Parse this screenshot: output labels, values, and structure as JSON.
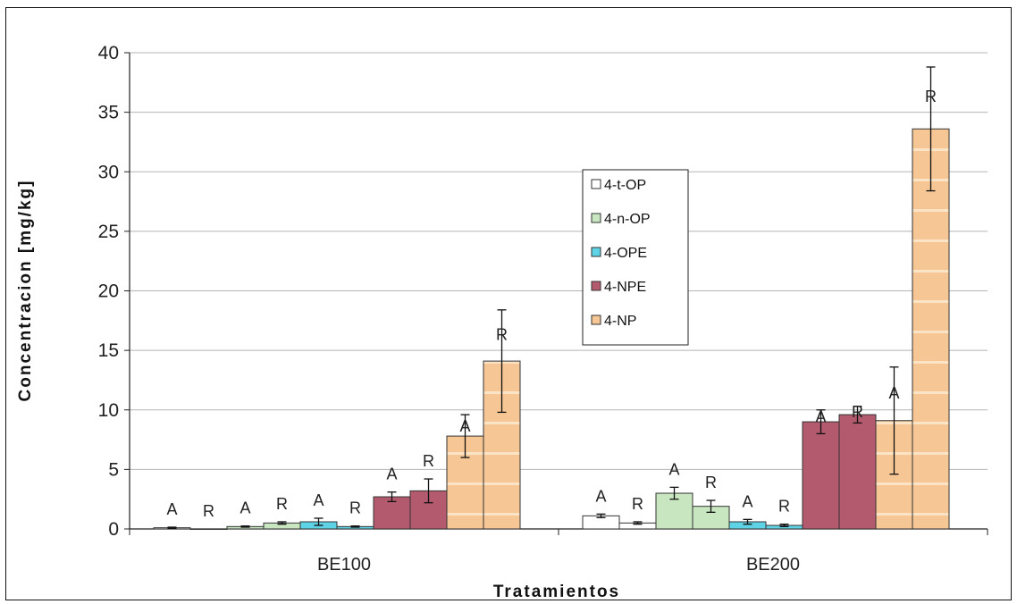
{
  "chart_data": {
    "type": "bar",
    "xlabel": "Tratamientos",
    "ylabel": "Concentracion [mg/kg]",
    "ylim": [
      0,
      40
    ],
    "yticks": [
      0,
      5,
      10,
      15,
      20,
      25,
      30,
      35,
      40
    ],
    "categories": [
      "BE100",
      "BE200"
    ],
    "grid": "horizontal",
    "legend_position": "center",
    "series_labels": [
      "A",
      "R"
    ],
    "series": [
      {
        "name": "4-t-OP",
        "color": "#ffffff",
        "values": [
          [
            0.1,
            0.0
          ],
          [
            1.1,
            0.5
          ]
        ],
        "errors": [
          [
            0.05,
            0.0
          ],
          [
            0.15,
            0.1
          ]
        ]
      },
      {
        "name": "4-n-OP",
        "color": "#c8e6c0",
        "values": [
          [
            0.2,
            0.5
          ],
          [
            3.0,
            1.9
          ]
        ],
        "errors": [
          [
            0.05,
            0.1
          ],
          [
            0.5,
            0.5
          ]
        ]
      },
      {
        "name": "4-OPE",
        "color": "#5fd3e6",
        "values": [
          [
            0.6,
            0.2
          ],
          [
            0.6,
            0.3
          ]
        ],
        "errors": [
          [
            0.3,
            0.05
          ],
          [
            0.2,
            0.1
          ]
        ]
      },
      {
        "name": "4-NPE",
        "color": "#b45a6e",
        "values": [
          [
            2.7,
            3.2
          ],
          [
            9.0,
            9.6
          ]
        ],
        "errors": [
          [
            0.4,
            1.0
          ],
          [
            1.0,
            0.7
          ]
        ]
      },
      {
        "name": "4-NP",
        "color": "#f6c694",
        "values": [
          [
            7.8,
            14.1
          ],
          [
            9.1,
            33.6
          ]
        ],
        "errors": [
          [
            1.8,
            4.3
          ],
          [
            4.5,
            5.2
          ]
        ]
      }
    ]
  }
}
